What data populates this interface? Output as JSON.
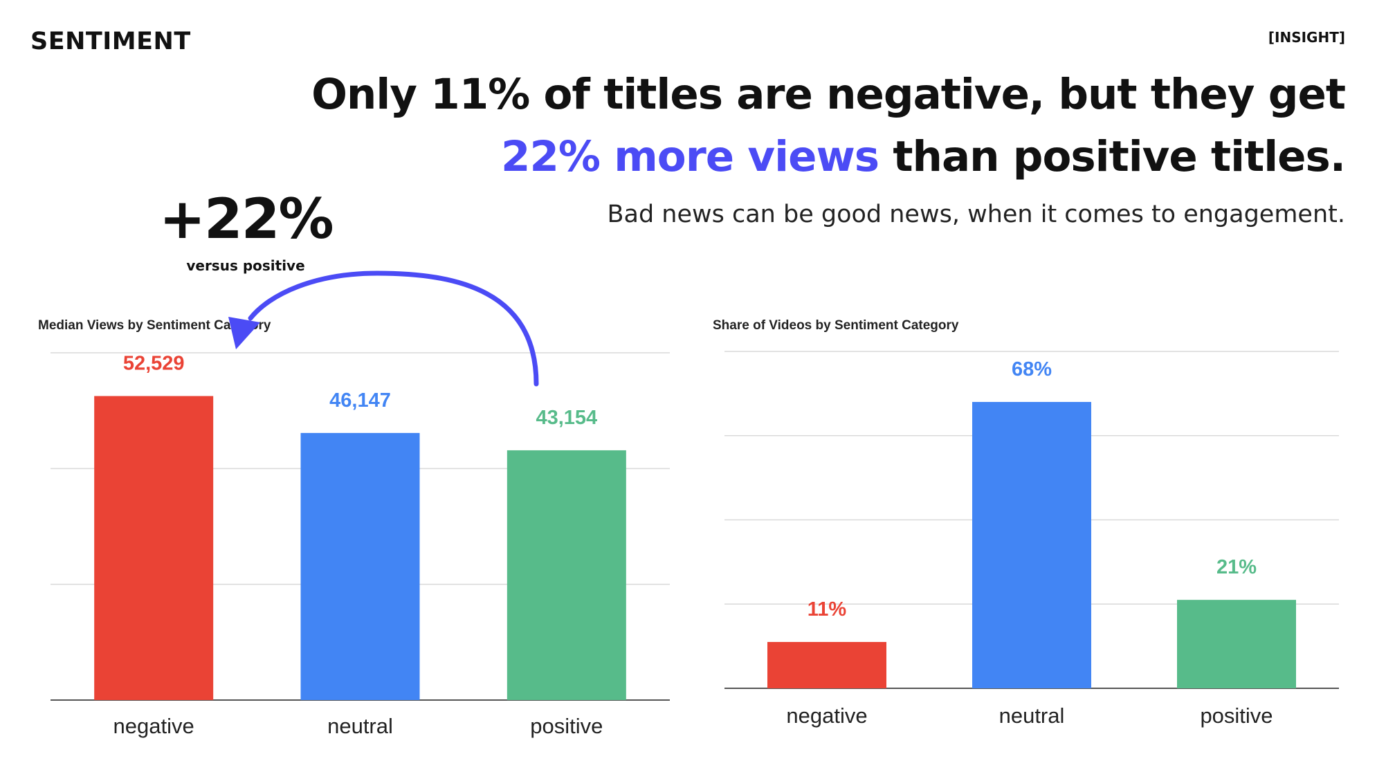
{
  "header": {
    "section": "SENTIMENT",
    "tag": "[INSIGHT]"
  },
  "headline": {
    "part1": "Only 11% of titles are negative, but they get",
    "accent": "22% more views",
    "part2": " than positive titles."
  },
  "subhead": "Bad news can be good news, when it comes to engagement.",
  "callout": {
    "value": "+22%",
    "caption": "versus positive"
  },
  "colors": {
    "negative": "#ea4335",
    "neutral": "#4285f4",
    "positive": "#57bb8a",
    "accent": "#4b4bf5"
  },
  "chart_data": [
    {
      "type": "bar",
      "title": "Median Views by Sentiment Category",
      "categories": [
        "negative",
        "neutral",
        "positive"
      ],
      "values": [
        52529,
        46147,
        43154
      ],
      "value_labels": [
        "52,529",
        "46,147",
        "43,154"
      ],
      "xlabel": "",
      "ylabel": "",
      "ylim": [
        0,
        60000
      ],
      "grid": true,
      "legend": "none"
    },
    {
      "type": "bar",
      "title": "Share of Videos by Sentiment Category",
      "categories": [
        "negative",
        "neutral",
        "positive"
      ],
      "values": [
        11,
        68,
        21
      ],
      "value_labels": [
        "11%",
        "68%",
        "21%"
      ],
      "xlabel": "",
      "ylabel": "",
      "ylim": [
        0,
        80
      ],
      "grid": true,
      "legend": "none"
    }
  ]
}
